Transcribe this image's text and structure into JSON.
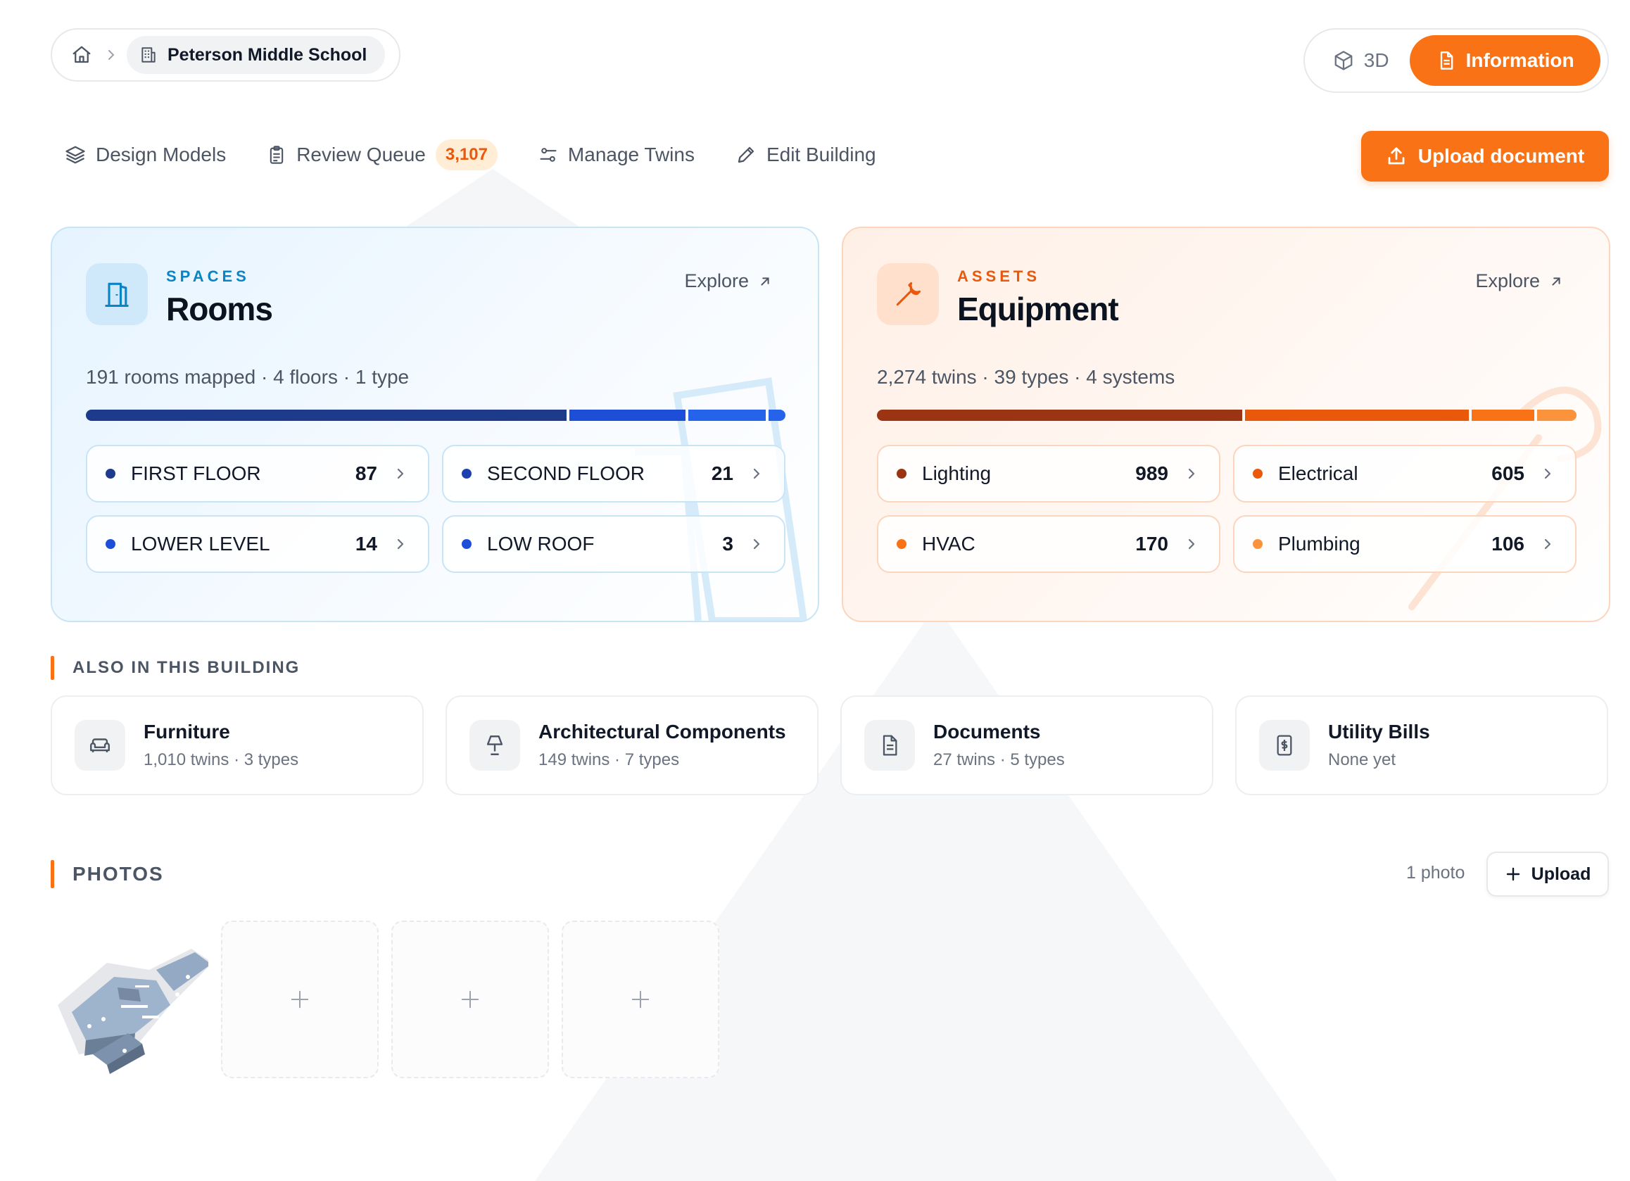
{
  "breadcrumb": {
    "current": "Peterson Middle School"
  },
  "view_toggle": {
    "three_d": "3D",
    "information": "Information"
  },
  "nav": {
    "design_models": "Design Models",
    "review_queue": "Review Queue",
    "review_queue_count": "3,107",
    "manage_twins": "Manage Twins",
    "edit_building": "Edit Building"
  },
  "upload_document": "Upload document",
  "spaces": {
    "kicker": "SPACES",
    "title": "Rooms",
    "explore": "Explore",
    "summary": "191 rooms mapped · 4 floors · 1 type",
    "bar": [
      {
        "value": 87,
        "color": "#1e3a8a"
      },
      {
        "value": 21,
        "color": "#1d4ed8"
      },
      {
        "value": 14,
        "color": "#2563eb"
      },
      {
        "value": 3,
        "color": "#2563eb"
      }
    ],
    "items": [
      {
        "label": "FIRST FLOOR",
        "count": "87",
        "color": "#1e3a8a"
      },
      {
        "label": "SECOND FLOOR",
        "count": "21",
        "color": "#1e40af"
      },
      {
        "label": "LOWER LEVEL",
        "count": "14",
        "color": "#1d4ed8"
      },
      {
        "label": "LOW ROOF",
        "count": "3",
        "color": "#1d4ed8"
      }
    ]
  },
  "assets": {
    "kicker": "ASSETS",
    "title": "Equipment",
    "explore": "Explore",
    "summary": "2,274 twins · 39 types · 4 systems",
    "bar": [
      {
        "value": 989,
        "color": "#9a3412"
      },
      {
        "value": 605,
        "color": "#ea580c"
      },
      {
        "value": 170,
        "color": "#f97316"
      },
      {
        "value": 106,
        "color": "#fb923c"
      }
    ],
    "items": [
      {
        "label": "Lighting",
        "count": "989",
        "color": "#9a3412"
      },
      {
        "label": "Electrical",
        "count": "605",
        "color": "#ea580c"
      },
      {
        "label": "HVAC",
        "count": "170",
        "color": "#f97316"
      },
      {
        "label": "Plumbing",
        "count": "106",
        "color": "#fb923c"
      }
    ]
  },
  "also": {
    "heading": "ALSO IN THIS BUILDING",
    "tiles": [
      {
        "title": "Furniture",
        "sub": "1,010 twins · 3 types",
        "icon": "sofa-icon"
      },
      {
        "title": "Architectural Components",
        "sub": "149 twins · 7 types",
        "icon": "lamp-icon"
      },
      {
        "title": "Documents",
        "sub": "27 twins · 5 types",
        "icon": "document-icon"
      },
      {
        "title": "Utility Bills",
        "sub": "None yet",
        "icon": "receipt-icon"
      }
    ]
  },
  "photos": {
    "heading": "PHOTOS",
    "count": "1 photo",
    "upload": "Upload"
  },
  "colors": {
    "accent": "#f97316",
    "spaces_accent": "#0b84c6",
    "assets_accent": "#ea580c"
  }
}
